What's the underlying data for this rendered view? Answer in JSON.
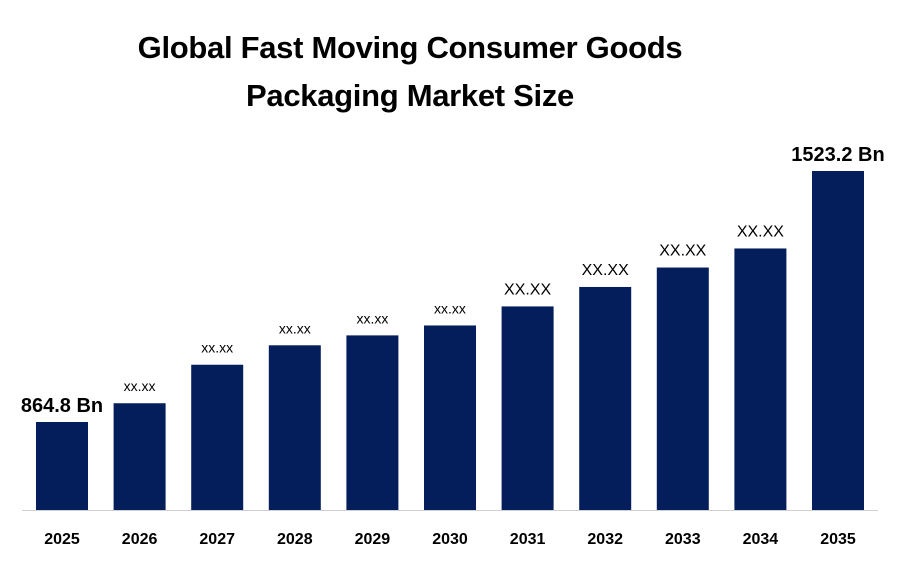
{
  "chart_data": {
    "type": "bar",
    "title_line1": "Global Fast Moving Consumer Goods",
    "title_line2": "Packaging Market Size",
    "xlabel": "",
    "ylabel": "",
    "categories": [
      "2025",
      "2026",
      "2027",
      "2028",
      "2029",
      "2030",
      "2031",
      "2032",
      "2033",
      "2034",
      "2035"
    ],
    "values": [
      864.8,
      914,
      1015,
      1066,
      1092,
      1118,
      1168,
      1219,
      1270,
      1320,
      1523.2
    ],
    "data_labels": [
      "864.8 Bn",
      "xx.xx",
      "xx.xx",
      "xx.xx",
      "xx.xx",
      "xx.xx",
      "XX.XX",
      "XX.XX",
      "XX.XX",
      "XX.XX",
      "1523.2 Bn"
    ],
    "ylim": [
      0,
      1700
    ],
    "grid": false,
    "legend": "none",
    "bar_color": "#041E5B"
  }
}
